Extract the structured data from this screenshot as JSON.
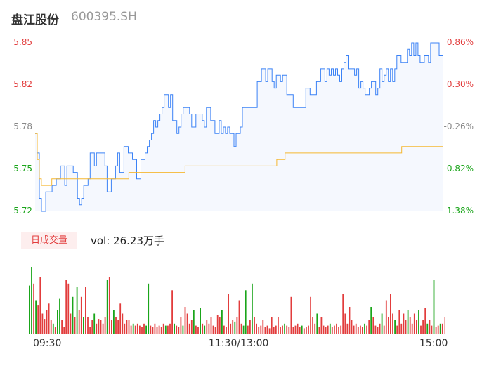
{
  "header": {
    "name": "盘江股份",
    "code": "600395.SH"
  },
  "colors": {
    "up": "#e23c3c",
    "down": "#1aa51a",
    "neutral": "#888888",
    "price_line": "#3b82f6",
    "avg_line": "#f5b731"
  },
  "chart_data": {
    "type": "line",
    "title": "",
    "price_ticks": [
      "5.85",
      "5.82",
      "5.78",
      "5.75",
      "5.72"
    ],
    "pct_ticks": [
      "0.86%",
      "0.30%",
      "-0.26%",
      "-0.82%",
      "-1.38%"
    ],
    "ylim": [
      5.72,
      5.85
    ],
    "x_labels": [
      "09:30",
      "11:30/13:00",
      "15:00"
    ],
    "series": [
      {
        "values": [
          5.78,
          5.765,
          5.73,
          5.72,
          5.72,
          5.735,
          5.735,
          5.735,
          5.74,
          5.74,
          5.745,
          5.745,
          5.755,
          5.755,
          5.74,
          5.755,
          5.755,
          5.755,
          5.75,
          5.75,
          5.73,
          5.725,
          5.73,
          5.74,
          5.74,
          5.745,
          5.765,
          5.765,
          5.755,
          5.765,
          5.765,
          5.765,
          5.765,
          5.755,
          5.735,
          5.735,
          5.745,
          5.745,
          5.755,
          5.765,
          5.75,
          5.75,
          5.77,
          5.77,
          5.765,
          5.765,
          5.76,
          5.76,
          5.745,
          5.745,
          5.76,
          5.76,
          5.765,
          5.77,
          5.775,
          5.78,
          5.79,
          5.785,
          5.79,
          5.795,
          5.8,
          5.81,
          5.81,
          5.8,
          5.81,
          5.79,
          5.79,
          5.78,
          5.785,
          5.795,
          5.8,
          5.8,
          5.8,
          5.795,
          5.785,
          5.785,
          5.795,
          5.795,
          5.795,
          5.79,
          5.785,
          5.8,
          5.8,
          5.79,
          5.79,
          5.78,
          5.78,
          5.79,
          5.78,
          5.785,
          5.78,
          5.785,
          5.78,
          5.78,
          5.77,
          5.78,
          5.78,
          5.785,
          5.8,
          5.8,
          5.8,
          5.8,
          5.8,
          5.8,
          5.8,
          5.82,
          5.82,
          5.83,
          5.83,
          5.82,
          5.83,
          5.83,
          5.82,
          5.815,
          5.825,
          5.825,
          5.82,
          5.825,
          5.825,
          5.81,
          5.81,
          5.81,
          5.8,
          5.8,
          5.8,
          5.8,
          5.8,
          5.8,
          5.815,
          5.815,
          5.81,
          5.81,
          5.81,
          5.82,
          5.82,
          5.83,
          5.83,
          5.82,
          5.83,
          5.825,
          5.83,
          5.825,
          5.83,
          5.825,
          5.82,
          5.83,
          5.835,
          5.84,
          5.83,
          5.83,
          5.83,
          5.825,
          5.83,
          5.815,
          5.82,
          5.815,
          5.81,
          5.81,
          5.815,
          5.82,
          5.82,
          5.81,
          5.815,
          5.83,
          5.82,
          5.825,
          5.83,
          5.82,
          5.83,
          5.82,
          5.83,
          5.84,
          5.84,
          5.835,
          5.835,
          5.835,
          5.845,
          5.84,
          5.85,
          5.84,
          5.85,
          5.84,
          5.835,
          5.835,
          5.84,
          5.84,
          5.835,
          5.85,
          5.85,
          5.85,
          5.85,
          5.84,
          5.84,
          5.84
        ]
      },
      {
        "values": [
          5.78,
          5.76,
          5.745,
          5.74,
          5.74,
          5.74,
          5.74,
          5.74,
          5.745,
          5.745,
          5.745,
          5.745,
          5.745,
          5.745,
          5.745,
          5.745,
          5.745,
          5.745,
          5.745,
          5.745,
          5.745,
          5.745,
          5.745,
          5.745,
          5.745,
          5.745,
          5.745,
          5.745,
          5.745,
          5.745,
          5.745,
          5.745,
          5.745,
          5.745,
          5.745,
          5.745,
          5.745,
          5.745,
          5.745,
          5.745,
          5.745,
          5.745,
          5.745,
          5.745,
          5.745,
          5.75,
          5.75,
          5.75,
          5.75,
          5.75,
          5.75,
          5.75,
          5.75,
          5.75,
          5.75,
          5.75,
          5.75,
          5.75,
          5.75,
          5.75,
          5.75,
          5.75,
          5.75,
          5.75,
          5.75,
          5.75,
          5.75,
          5.75,
          5.75,
          5.75,
          5.75,
          5.75,
          5.755,
          5.755,
          5.755,
          5.755,
          5.755,
          5.755,
          5.755,
          5.755,
          5.755,
          5.755,
          5.755,
          5.755,
          5.755,
          5.755,
          5.755,
          5.755,
          5.755,
          5.755,
          5.755,
          5.755,
          5.755,
          5.755,
          5.755,
          5.755,
          5.755,
          5.755,
          5.755,
          5.755,
          5.755,
          5.755,
          5.755,
          5.755,
          5.755,
          5.755,
          5.755,
          5.755,
          5.755,
          5.755,
          5.755,
          5.755,
          5.755,
          5.755,
          5.755,
          5.755,
          5.76,
          5.76,
          5.76,
          5.76,
          5.765,
          5.765,
          5.765,
          5.765,
          5.765,
          5.765,
          5.765,
          5.765,
          5.765,
          5.765,
          5.765,
          5.765,
          5.765,
          5.765,
          5.765,
          5.765,
          5.765,
          5.765,
          5.765,
          5.765,
          5.765,
          5.765,
          5.765,
          5.765,
          5.765,
          5.765,
          5.765,
          5.765,
          5.765,
          5.765,
          5.765,
          5.765,
          5.765,
          5.765,
          5.765,
          5.765,
          5.765,
          5.765,
          5.765,
          5.765,
          5.765,
          5.765,
          5.765,
          5.765,
          5.765,
          5.765,
          5.765,
          5.765,
          5.765,
          5.765,
          5.765,
          5.765,
          5.765,
          5.765,
          5.765,
          5.765,
          5.77,
          5.77,
          5.77,
          5.77,
          5.77,
          5.77,
          5.77,
          5.77,
          5.77,
          5.77,
          5.77,
          5.77,
          5.77,
          5.77,
          5.77,
          5.77,
          5.77,
          5.77,
          5.77,
          5.77,
          5.77
        ]
      }
    ],
    "volume": {
      "label": "日成交量",
      "value_text": "vol: 26.23万手",
      "bars": [
        {
          "v": 0.72,
          "d": "down"
        },
        {
          "v": 1.0,
          "d": "down"
        },
        {
          "v": 0.75,
          "d": "up"
        },
        {
          "v": 0.5,
          "d": "down"
        },
        {
          "v": 0.42,
          "d": "up"
        },
        {
          "v": 0.85,
          "d": "up"
        },
        {
          "v": 0.3,
          "d": "up"
        },
        {
          "v": 0.22,
          "d": "up"
        },
        {
          "v": 0.35,
          "d": "up"
        },
        {
          "v": 0.45,
          "d": "up"
        },
        {
          "v": 0.2,
          "d": "up"
        },
        {
          "v": 0.15,
          "d": "down"
        },
        {
          "v": 0.1,
          "d": "up"
        },
        {
          "v": 0.35,
          "d": "down"
        },
        {
          "v": 0.52,
          "d": "down"
        },
        {
          "v": 0.2,
          "d": "up"
        },
        {
          "v": 0.1,
          "d": "up"
        },
        {
          "v": 0.8,
          "d": "up"
        },
        {
          "v": 0.75,
          "d": "up"
        },
        {
          "v": 0.3,
          "d": "up"
        },
        {
          "v": 0.55,
          "d": "down"
        },
        {
          "v": 0.25,
          "d": "up"
        },
        {
          "v": 0.7,
          "d": "down"
        },
        {
          "v": 0.35,
          "d": "up"
        },
        {
          "v": 0.55,
          "d": "up"
        },
        {
          "v": 0.25,
          "d": "down"
        },
        {
          "v": 0.7,
          "d": "up"
        },
        {
          "v": 0.25,
          "d": "up"
        },
        {
          "v": 0.1,
          "d": "up"
        },
        {
          "v": 0.2,
          "d": "up"
        },
        {
          "v": 0.3,
          "d": "down"
        },
        {
          "v": 0.15,
          "d": "up"
        },
        {
          "v": 0.22,
          "d": "up"
        },
        {
          "v": 0.2,
          "d": "up"
        },
        {
          "v": 0.15,
          "d": "up"
        },
        {
          "v": 0.25,
          "d": "up"
        },
        {
          "v": 0.8,
          "d": "down"
        },
        {
          "v": 0.85,
          "d": "up"
        },
        {
          "v": 0.2,
          "d": "up"
        },
        {
          "v": 0.35,
          "d": "down"
        },
        {
          "v": 0.25,
          "d": "up"
        },
        {
          "v": 0.2,
          "d": "up"
        },
        {
          "v": 0.45,
          "d": "up"
        },
        {
          "v": 0.3,
          "d": "up"
        },
        {
          "v": 0.15,
          "d": "up"
        },
        {
          "v": 0.2,
          "d": "up"
        },
        {
          "v": 0.2,
          "d": "up"
        },
        {
          "v": 0.12,
          "d": "up"
        },
        {
          "v": 0.15,
          "d": "down"
        },
        {
          "v": 0.12,
          "d": "up"
        },
        {
          "v": 0.15,
          "d": "up"
        },
        {
          "v": 0.12,
          "d": "up"
        },
        {
          "v": 0.1,
          "d": "up"
        },
        {
          "v": 0.15,
          "d": "up"
        },
        {
          "v": 0.12,
          "d": "down"
        },
        {
          "v": 0.75,
          "d": "down"
        },
        {
          "v": 0.12,
          "d": "up"
        },
        {
          "v": 0.1,
          "d": "up"
        },
        {
          "v": 0.15,
          "d": "up"
        },
        {
          "v": 0.1,
          "d": "up"
        },
        {
          "v": 0.12,
          "d": "up"
        },
        {
          "v": 0.1,
          "d": "up"
        },
        {
          "v": 0.15,
          "d": "up"
        },
        {
          "v": 0.12,
          "d": "down"
        },
        {
          "v": 0.12,
          "d": "up"
        },
        {
          "v": 0.15,
          "d": "up"
        },
        {
          "v": 0.65,
          "d": "up"
        },
        {
          "v": 0.15,
          "d": "down"
        },
        {
          "v": 0.12,
          "d": "up"
        },
        {
          "v": 0.1,
          "d": "up"
        },
        {
          "v": 0.25,
          "d": "up"
        },
        {
          "v": 0.12,
          "d": "down"
        },
        {
          "v": 0.4,
          "d": "up"
        },
        {
          "v": 0.3,
          "d": "up"
        },
        {
          "v": 0.15,
          "d": "up"
        },
        {
          "v": 0.2,
          "d": "up"
        },
        {
          "v": 0.35,
          "d": "down"
        },
        {
          "v": 0.12,
          "d": "up"
        },
        {
          "v": 0.1,
          "d": "up"
        },
        {
          "v": 0.38,
          "d": "down"
        },
        {
          "v": 0.15,
          "d": "up"
        },
        {
          "v": 0.12,
          "d": "down"
        },
        {
          "v": 0.2,
          "d": "up"
        },
        {
          "v": 0.15,
          "d": "up"
        },
        {
          "v": 0.25,
          "d": "up"
        },
        {
          "v": 0.12,
          "d": "up"
        },
        {
          "v": 0.1,
          "d": "up"
        },
        {
          "v": 0.28,
          "d": "up"
        },
        {
          "v": 0.25,
          "d": "up"
        },
        {
          "v": 0.35,
          "d": "down"
        },
        {
          "v": 0.12,
          "d": "up"
        },
        {
          "v": 0.1,
          "d": "up"
        },
        {
          "v": 0.6,
          "d": "up"
        },
        {
          "v": 0.15,
          "d": "up"
        },
        {
          "v": 0.2,
          "d": "up"
        },
        {
          "v": 0.18,
          "d": "down"
        },
        {
          "v": 0.25,
          "d": "up"
        },
        {
          "v": 0.5,
          "d": "up"
        },
        {
          "v": 0.15,
          "d": "up"
        },
        {
          "v": 0.12,
          "d": "down"
        },
        {
          "v": 0.65,
          "d": "down"
        },
        {
          "v": 0.12,
          "d": "up"
        },
        {
          "v": 0.2,
          "d": "up"
        },
        {
          "v": 0.75,
          "d": "down"
        },
        {
          "v": 0.25,
          "d": "up"
        },
        {
          "v": 0.15,
          "d": "up"
        },
        {
          "v": 0.1,
          "d": "up"
        },
        {
          "v": 0.12,
          "d": "up"
        },
        {
          "v": 0.2,
          "d": "up"
        },
        {
          "v": 0.1,
          "d": "up"
        },
        {
          "v": 0.12,
          "d": "up"
        },
        {
          "v": 0.08,
          "d": "up"
        },
        {
          "v": 0.25,
          "d": "up"
        },
        {
          "v": 0.1,
          "d": "up"
        },
        {
          "v": 0.12,
          "d": "up"
        },
        {
          "v": 0.25,
          "d": "up"
        },
        {
          "v": 0.1,
          "d": "up"
        },
        {
          "v": 0.12,
          "d": "up"
        },
        {
          "v": 0.15,
          "d": "down"
        },
        {
          "v": 0.12,
          "d": "up"
        },
        {
          "v": 0.1,
          "d": "up"
        },
        {
          "v": 0.55,
          "d": "up"
        },
        {
          "v": 0.1,
          "d": "up"
        },
        {
          "v": 0.12,
          "d": "up"
        },
        {
          "v": 0.15,
          "d": "up"
        },
        {
          "v": 0.1,
          "d": "up"
        },
        {
          "v": 0.12,
          "d": "down"
        },
        {
          "v": 0.08,
          "d": "up"
        },
        {
          "v": 0.1,
          "d": "up"
        },
        {
          "v": 0.12,
          "d": "up"
        },
        {
          "v": 0.55,
          "d": "up"
        },
        {
          "v": 0.25,
          "d": "up"
        },
        {
          "v": 0.15,
          "d": "up"
        },
        {
          "v": 0.3,
          "d": "down"
        },
        {
          "v": 0.1,
          "d": "up"
        },
        {
          "v": 0.25,
          "d": "up"
        },
        {
          "v": 0.12,
          "d": "up"
        },
        {
          "v": 0.1,
          "d": "up"
        },
        {
          "v": 0.12,
          "d": "up"
        },
        {
          "v": 0.15,
          "d": "down"
        },
        {
          "v": 0.1,
          "d": "up"
        },
        {
          "v": 0.12,
          "d": "up"
        },
        {
          "v": 0.15,
          "d": "up"
        },
        {
          "v": 0.1,
          "d": "up"
        },
        {
          "v": 0.12,
          "d": "up"
        },
        {
          "v": 0.6,
          "d": "up"
        },
        {
          "v": 0.3,
          "d": "up"
        },
        {
          "v": 0.15,
          "d": "up"
        },
        {
          "v": 0.4,
          "d": "up"
        },
        {
          "v": 0.2,
          "d": "up"
        },
        {
          "v": 0.12,
          "d": "up"
        },
        {
          "v": 0.15,
          "d": "up"
        },
        {
          "v": 0.1,
          "d": "up"
        },
        {
          "v": 0.12,
          "d": "up"
        },
        {
          "v": 0.1,
          "d": "up"
        },
        {
          "v": 0.15,
          "d": "down"
        },
        {
          "v": 0.12,
          "d": "up"
        },
        {
          "v": 0.2,
          "d": "up"
        },
        {
          "v": 0.4,
          "d": "down"
        },
        {
          "v": 0.25,
          "d": "up"
        },
        {
          "v": 0.12,
          "d": "up"
        },
        {
          "v": 0.1,
          "d": "up"
        },
        {
          "v": 0.15,
          "d": "up"
        },
        {
          "v": 0.3,
          "d": "down"
        },
        {
          "v": 0.12,
          "d": "up"
        },
        {
          "v": 0.5,
          "d": "up"
        },
        {
          "v": 0.25,
          "d": "up"
        },
        {
          "v": 0.6,
          "d": "up"
        },
        {
          "v": 0.3,
          "d": "up"
        },
        {
          "v": 0.2,
          "d": "down"
        },
        {
          "v": 0.12,
          "d": "up"
        },
        {
          "v": 0.35,
          "d": "up"
        },
        {
          "v": 0.15,
          "d": "up"
        },
        {
          "v": 0.3,
          "d": "up"
        },
        {
          "v": 0.2,
          "d": "up"
        },
        {
          "v": 0.35,
          "d": "down"
        },
        {
          "v": 0.25,
          "d": "up"
        },
        {
          "v": 0.15,
          "d": "up"
        },
        {
          "v": 0.3,
          "d": "up"
        },
        {
          "v": 0.2,
          "d": "up"
        },
        {
          "v": 0.35,
          "d": "down"
        },
        {
          "v": 0.12,
          "d": "up"
        },
        {
          "v": 0.2,
          "d": "up"
        },
        {
          "v": 0.38,
          "d": "up"
        },
        {
          "v": 0.15,
          "d": "down"
        },
        {
          "v": 0.2,
          "d": "up"
        },
        {
          "v": 0.12,
          "d": "up"
        },
        {
          "v": 0.8,
          "d": "down"
        },
        {
          "v": 0.1,
          "d": "up"
        },
        {
          "v": 0.12,
          "d": "up"
        },
        {
          "v": 0.15,
          "d": "down"
        },
        {
          "v": 0.15,
          "d": "up"
        },
        {
          "v": 0.25,
          "d": "neutral"
        }
      ]
    }
  }
}
